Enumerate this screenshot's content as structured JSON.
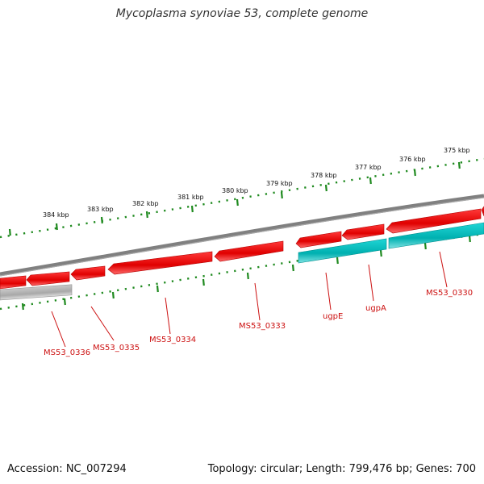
{
  "title": "Mycoplasma synoviae 53, complete genome",
  "footer": {
    "accession": "Accession: NC_007294",
    "summary": "Topology: circular; Length: 799,476 bp; Genes: 700"
  },
  "colors": {
    "background": "#ffffff",
    "backbone": "#7f7f7f",
    "gene_forward": "#ee1111",
    "gene_reverse_red": "#ee1111",
    "gene_teal": "#11c4c4",
    "gene_gray": "#b5b5b5",
    "tick": "#1f8a1f",
    "label": "#cc1111"
  },
  "ticks": [
    {
      "label": "375 kbp"
    },
    {
      "label": "376 kbp"
    },
    {
      "label": "377 kbp"
    },
    {
      "label": "378 kbp"
    },
    {
      "label": "379 kbp"
    },
    {
      "label": "380 kbp"
    },
    {
      "label": "381 kbp"
    },
    {
      "label": "382 kbp"
    },
    {
      "label": "383 kbp"
    },
    {
      "label": "384 kbp"
    }
  ],
  "genes": [
    {
      "name": "MS53_0336",
      "strand": "reverse",
      "color": "gray"
    },
    {
      "name": "MS53_0335",
      "strand": "reverse",
      "color": "red"
    },
    {
      "name": "MS53_0334",
      "strand": "reverse",
      "color": "red"
    },
    {
      "name": "MS53_0333",
      "strand": "reverse",
      "color": "red"
    },
    {
      "name": "ugpE",
      "strand": "reverse",
      "color": "red"
    },
    {
      "name": "ugpA",
      "strand": "reverse",
      "color": "red"
    },
    {
      "name": "MS53_0330",
      "strand": "reverse",
      "color": "red"
    }
  ]
}
